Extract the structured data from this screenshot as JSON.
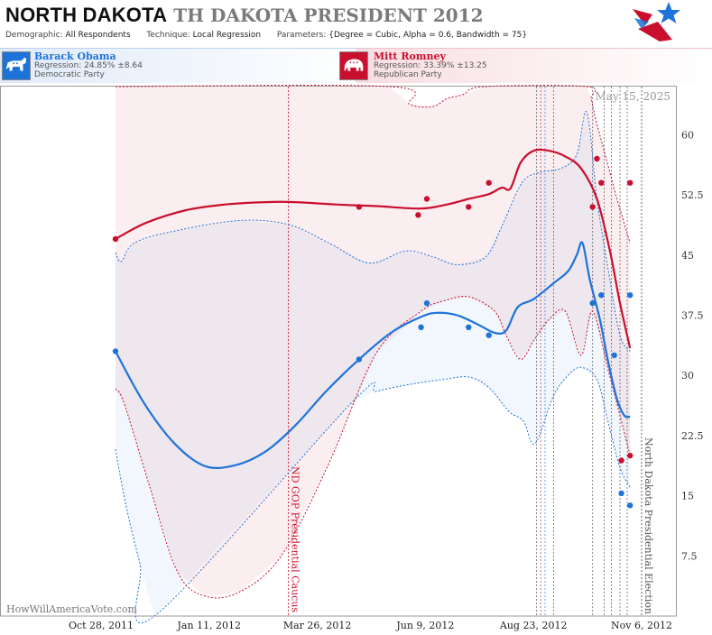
{
  "header": {
    "title_main": "NORTH DAKOTA",
    "title_sub": "TH DAKOTA PRESIDENT 2012",
    "demographic_label": "Demographic:",
    "demographic_value": "All Respondents",
    "technique_label": "Technique:",
    "technique_value": "Local Regression",
    "parameters_label": "Parameters:",
    "parameters_value": "{Degree = Cubic, Alpha = 0.6, Bandwidth = 75}"
  },
  "candidates": [
    {
      "name": "Barack Obama",
      "regression": "Regression: 24.85% ±8.64",
      "party": "Democratic Party",
      "color": "#1e73d8",
      "icon": "donkey-icon"
    },
    {
      "name": "Mitt Romney",
      "regression": "Regression: 33.39% ±13.25",
      "party": "Republican Party",
      "color": "#c8102e",
      "icon": "elephant-icon"
    }
  ],
  "chart_data": {
    "type": "line",
    "x_ticks": [
      "Oct 28, 2011",
      "Jan 11, 2012",
      "Mar 26, 2012",
      "Jun 9, 2012",
      "Aug 23, 2012",
      "Nov 6, 2012"
    ],
    "y_ticks": [
      "7.5",
      "15",
      "22.5",
      "30",
      "37.5",
      "45",
      "52.5",
      "60"
    ],
    "ylim": [
      0,
      66
    ],
    "date_label": "May 15, 2025",
    "watermark": "HowWillAmericaVote.com",
    "annotations": [
      {
        "date": "2012-03-06",
        "label": "ND GOP Presidential Caucus",
        "color": "#c8102e"
      },
      {
        "date": "2012-11-06",
        "label": "North Dakota Presidential Election",
        "color": "#555555"
      }
    ],
    "vertical_markers": [
      {
        "date": "2012-08-25",
        "color": "#444444"
      },
      {
        "date": "2012-08-28",
        "color": "#c8102e"
      },
      {
        "date": "2012-08-31",
        "color": "#1e73d8"
      },
      {
        "date": "2012-09-06",
        "color": "#444444"
      },
      {
        "date": "2012-10-03",
        "color": "#444444"
      },
      {
        "date": "2012-10-11",
        "color": "#444444"
      },
      {
        "date": "2012-10-16",
        "color": "#444444"
      },
      {
        "date": "2012-10-22",
        "color": "#444444"
      },
      {
        "date": "2012-10-27",
        "color": "#444444"
      }
    ],
    "series": [
      {
        "name": "Barack Obama",
        "color": "#1e73d8",
        "points": [
          [
            "2011-11-07",
            33.0
          ],
          [
            "2012-04-24",
            32.0
          ],
          [
            "2012-06-06",
            36.0
          ],
          [
            "2012-06-10",
            39.0
          ],
          [
            "2012-07-09",
            36.0
          ],
          [
            "2012-07-23",
            35.0
          ],
          [
            "2012-10-03",
            39.0
          ],
          [
            "2012-10-09",
            40.0
          ],
          [
            "2012-10-18",
            32.5
          ],
          [
            "2012-10-23",
            15.3
          ],
          [
            "2012-10-29",
            13.8
          ],
          [
            "2012-10-29",
            40.0
          ]
        ],
        "trend": [
          [
            "2011-11-07",
            33.0
          ],
          [
            "2011-11-27",
            26.5
          ],
          [
            "2011-12-18",
            21.5
          ],
          [
            "2012-01-08",
            18.7
          ],
          [
            "2012-01-29",
            18.8
          ],
          [
            "2012-02-19",
            20.5
          ],
          [
            "2012-03-11",
            23.8
          ],
          [
            "2012-04-01",
            28.0
          ],
          [
            "2012-04-24",
            32.0
          ],
          [
            "2012-05-16",
            35.3
          ],
          [
            "2012-06-06",
            37.3
          ],
          [
            "2012-06-17",
            37.8
          ],
          [
            "2012-07-01",
            37.5
          ],
          [
            "2012-07-16",
            36.3
          ],
          [
            "2012-07-27",
            35.3
          ],
          [
            "2012-08-04",
            35.6
          ],
          [
            "2012-08-12",
            38.5
          ],
          [
            "2012-08-23",
            39.5
          ],
          [
            "2012-09-06",
            41.5
          ],
          [
            "2012-09-16",
            43.0
          ],
          [
            "2012-09-22",
            45.0
          ],
          [
            "2012-09-26",
            46.5
          ],
          [
            "2012-10-01",
            42.0
          ],
          [
            "2012-10-08",
            37.0
          ],
          [
            "2012-10-14",
            31.5
          ],
          [
            "2012-10-20",
            27.0
          ],
          [
            "2012-10-25",
            25.0
          ],
          [
            "2012-10-29",
            24.85
          ]
        ],
        "upper": [
          [
            "2011-11-07",
            45.3
          ],
          [
            "2011-11-11",
            44.2
          ],
          [
            "2011-11-20",
            46.5
          ],
          [
            "2011-12-18",
            48.0
          ],
          [
            "2012-02-01",
            49.3
          ],
          [
            "2012-03-06",
            48.8
          ],
          [
            "2012-04-03",
            46.5
          ],
          [
            "2012-05-01",
            44.0
          ],
          [
            "2012-05-26",
            45.5
          ],
          [
            "2012-06-14",
            44.8
          ],
          [
            "2012-07-01",
            43.8
          ],
          [
            "2012-07-21",
            44.8
          ],
          [
            "2012-08-02",
            49.0
          ],
          [
            "2012-08-15",
            54.0
          ],
          [
            "2012-08-27",
            55.3
          ],
          [
            "2012-09-11",
            55.8
          ],
          [
            "2012-09-22",
            57.5
          ],
          [
            "2012-09-29",
            62.8
          ],
          [
            "2012-10-06",
            52.0
          ],
          [
            "2012-10-14",
            43.0
          ],
          [
            "2012-10-22",
            35.0
          ],
          [
            "2012-10-29",
            33.0
          ]
        ],
        "lower": [
          [
            "2011-11-07",
            20.8
          ],
          [
            "2011-11-14",
            14.0
          ],
          [
            "2011-11-24",
            6.5
          ],
          [
            "2011-12-04",
            0.0
          ],
          [
            "2012-04-20",
            26.8
          ],
          [
            "2012-05-06",
            28.0
          ],
          [
            "2012-06-02",
            29.0
          ],
          [
            "2012-06-22",
            29.5
          ],
          [
            "2012-07-09",
            29.8
          ],
          [
            "2012-07-23",
            28.5
          ],
          [
            "2012-08-06",
            25.5
          ],
          [
            "2012-08-16",
            24.3
          ],
          [
            "2012-08-24",
            21.5
          ],
          [
            "2012-09-06",
            27.5
          ],
          [
            "2012-09-16",
            30.0
          ],
          [
            "2012-09-25",
            31.0
          ],
          [
            "2012-10-06",
            29.5
          ],
          [
            "2012-10-14",
            24.0
          ],
          [
            "2012-10-22",
            18.5
          ],
          [
            "2012-10-29",
            16.0
          ]
        ]
      },
      {
        "name": "Mitt Romney",
        "color": "#c8102e",
        "points": [
          [
            "2011-11-07",
            47.0
          ],
          [
            "2012-04-24",
            51.0
          ],
          [
            "2012-06-04",
            50.0
          ],
          [
            "2012-06-10",
            52.0
          ],
          [
            "2012-07-09",
            51.0
          ],
          [
            "2012-07-23",
            54.0
          ],
          [
            "2012-10-03",
            51.0
          ],
          [
            "2012-10-06",
            57.0
          ],
          [
            "2012-10-09",
            54.0
          ],
          [
            "2012-10-23",
            19.4
          ],
          [
            "2012-10-29",
            20.0
          ],
          [
            "2012-10-29",
            54.0
          ]
        ],
        "trend": [
          [
            "2011-11-07",
            47.0
          ],
          [
            "2011-11-28",
            49.0
          ],
          [
            "2011-12-26",
            50.6
          ],
          [
            "2012-01-22",
            51.3
          ],
          [
            "2012-02-19",
            51.6
          ],
          [
            "2012-03-11",
            51.6
          ],
          [
            "2012-04-08",
            51.3
          ],
          [
            "2012-05-06",
            51.1
          ],
          [
            "2012-06-06",
            50.8
          ],
          [
            "2012-06-24",
            51.3
          ],
          [
            "2012-07-09",
            52.0
          ],
          [
            "2012-07-23",
            52.6
          ],
          [
            "2012-08-01",
            53.4
          ],
          [
            "2012-08-07",
            53.3
          ],
          [
            "2012-08-14",
            56.5
          ],
          [
            "2012-08-23",
            58.0
          ],
          [
            "2012-09-03",
            58.0
          ],
          [
            "2012-09-14",
            57.3
          ],
          [
            "2012-09-25",
            55.8
          ],
          [
            "2012-10-06",
            52.0
          ],
          [
            "2012-10-15",
            45.5
          ],
          [
            "2012-10-22",
            39.0
          ],
          [
            "2012-10-29",
            33.39
          ]
        ],
        "upper": [
          [
            "2011-11-07",
            66.0
          ],
          [
            "2012-05-15",
            66.0
          ],
          [
            "2012-05-29",
            63.8
          ],
          [
            "2012-06-14",
            63.5
          ],
          [
            "2012-06-24",
            64.5
          ],
          [
            "2012-07-05",
            65.0
          ],
          [
            "2012-07-20",
            66.0
          ],
          [
            "2012-09-29",
            66.0
          ],
          [
            "2012-10-02",
            64.5
          ],
          [
            "2012-10-05",
            62.0
          ],
          [
            "2012-10-11",
            58.0
          ],
          [
            "2012-10-20",
            52.0
          ],
          [
            "2012-10-29",
            46.5
          ]
        ],
        "lower": [
          [
            "2011-11-07",
            28.3
          ],
          [
            "2011-11-13",
            26.5
          ],
          [
            "2011-12-01",
            16.0
          ],
          [
            "2011-12-20",
            5.5
          ],
          [
            "2012-01-08",
            2.5
          ],
          [
            "2012-02-01",
            3.0
          ],
          [
            "2012-03-01",
            7.5
          ],
          [
            "2012-04-03",
            19.0
          ],
          [
            "2012-05-06",
            32.8
          ],
          [
            "2012-06-06",
            38.0
          ],
          [
            "2012-06-22",
            39.3
          ],
          [
            "2012-07-09",
            39.8
          ],
          [
            "2012-07-27",
            38.0
          ],
          [
            "2012-08-04",
            35.0
          ],
          [
            "2012-08-14",
            32.0
          ],
          [
            "2012-08-23",
            34.3
          ],
          [
            "2012-09-03",
            37.0
          ],
          [
            "2012-09-14",
            38.0
          ],
          [
            "2012-09-25",
            32.5
          ],
          [
            "2012-10-03",
            38.0
          ],
          [
            "2012-10-14",
            30.5
          ],
          [
            "2012-10-22",
            25.0
          ],
          [
            "2012-10-29",
            20.0
          ]
        ]
      }
    ]
  }
}
